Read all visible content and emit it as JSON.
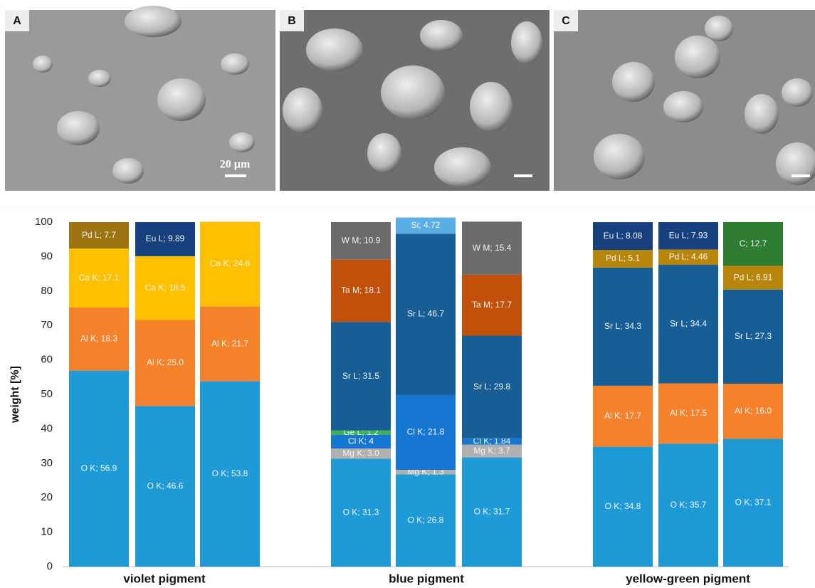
{
  "figure_panels": [
    {
      "label": "A",
      "scale_bar": "20 µm"
    },
    {
      "label": "B"
    },
    {
      "label": "C"
    }
  ],
  "chart_data": {
    "type": "stacked_bar",
    "ylabel": "weight [%]",
    "ylim": [
      0,
      100
    ],
    "yticks": [
      0,
      10,
      20,
      30,
      40,
      50,
      60,
      70,
      80,
      90,
      100
    ],
    "groups": [
      {
        "name": "violet pigment",
        "bars": [
          {
            "values": [
              56.9,
              18.3,
              17.1,
              7.7
            ],
            "value_labels": [
              "O K; 56.9",
              "Al K; 18.3",
              "Ca K; 17.1",
              "Pd L; 7.7"
            ],
            "colors": [
              "#1e9ad6",
              "#f5822a",
              "#ffc000",
              "#9c7412"
            ]
          },
          {
            "values": [
              46.6,
              25.0,
              18.5,
              9.89
            ],
            "value_labels": [
              "O K; 46.6",
              "Al K; 25.0",
              "Ca K; 18.5",
              "Eu L; 9.89"
            ],
            "colors": [
              "#1e9ad6",
              "#f5822a",
              "#ffc000",
              "#17407e"
            ]
          },
          {
            "values": [
              53.8,
              21.7,
              24.6
            ],
            "value_labels": [
              "O K; 53.8",
              "Al K; 21.7",
              "Ca K; 24.6"
            ],
            "colors": [
              "#1e9ad6",
              "#f5822a",
              "#ffc000"
            ]
          }
        ]
      },
      {
        "name": "blue pigment",
        "bars": [
          {
            "values": [
              31.3,
              3.0,
              4,
              1.2,
              31.5,
              18.1,
              10.9
            ],
            "value_labels": [
              "O K; 31.3",
              "Mg K; 3.0",
              "Cl K; 4",
              "Ge L; 1.2",
              "Sr L; 31.5",
              "Ta M; 18.1",
              "W M; 10.9"
            ],
            "colors": [
              "#1e9ad6",
              "#b0b0b0",
              "#1677d2",
              "#3cb44b",
              "#165e95",
              "#c0500a",
              "#6b6b6b"
            ]
          },
          {
            "values": [
              26.8,
              1.3,
              21.8,
              46.7,
              4.72
            ],
            "value_labels": [
              "O K; 26.8",
              "Mg K; 1.3",
              "Cl K; 21.8",
              "Sr L; 46.7",
              "Si; 4.72"
            ],
            "colors": [
              "#1e9ad6",
              "#b0b0b0",
              "#1677d2",
              "#165e95",
              "#5aaee6"
            ]
          },
          {
            "values": [
              31.7,
              3.7,
              1.84,
              29.8,
              17.7,
              15.4
            ],
            "value_labels": [
              "O K; 31.7",
              "Mg K; 3.7",
              "Cl K; 1.84",
              "Sr L; 29.8",
              "Ta M; 17.7",
              "W M; 15.4"
            ],
            "colors": [
              "#1e9ad6",
              "#b0b0b0",
              "#1677d2",
              "#165e95",
              "#c0500a",
              "#6b6b6b"
            ]
          }
        ]
      },
      {
        "name": "yellow-green pigment",
        "bars": [
          {
            "values": [
              34.8,
              17.7,
              34.3,
              5.1,
              8.08
            ],
            "value_labels": [
              "O K; 34.8",
              "Al K; 17.7",
              "Sr L; 34.3",
              "Pd L; 5.1",
              "Eu L; 8.08"
            ],
            "colors": [
              "#1e9ad6",
              "#f5822a",
              "#165e95",
              "#b8860b",
              "#17407e"
            ]
          },
          {
            "values": [
              35.7,
              17.5,
              34.4,
              4.46,
              7.93
            ],
            "value_labels": [
              "O K; 35.7",
              "Al K; 17.5",
              "Sr L; 34.4",
              "Pd L; 4.46",
              "Eu L; 7.93"
            ],
            "colors": [
              "#1e9ad6",
              "#f5822a",
              "#165e95",
              "#b8860b",
              "#17407e"
            ]
          },
          {
            "values": [
              37.1,
              16.0,
              27.3,
              6.91,
              12.7
            ],
            "value_labels": [
              "O K; 37.1",
              "Al K; 16.0",
              "Sr L; 27.3",
              "Pd L; 6.91",
              "C; 12.7"
            ],
            "colors": [
              "#1e9ad6",
              "#f5822a",
              "#165e95",
              "#b8860b",
              "#2e7d32"
            ]
          }
        ]
      }
    ]
  }
}
